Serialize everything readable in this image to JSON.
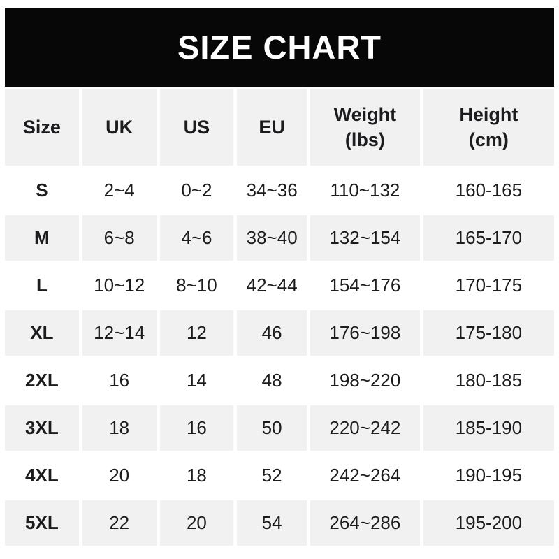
{
  "banner": {
    "title": "SIZE CHART",
    "background_color": "#070707",
    "text_color": "#ffffff"
  },
  "table_style": {
    "stripe_color": "#f1f1f2",
    "row_color": "#ffffff",
    "text_color": "#1c1c1e"
  },
  "chart_data": {
    "type": "table",
    "title": "SIZE CHART",
    "columns": [
      {
        "key": "size",
        "label": "Size"
      },
      {
        "key": "uk",
        "label": "UK"
      },
      {
        "key": "us",
        "label": "US"
      },
      {
        "key": "eu",
        "label": "EU"
      },
      {
        "key": "weight",
        "label": "Weight\n(lbs)"
      },
      {
        "key": "height",
        "label": "Height\n(cm)"
      }
    ],
    "rows": [
      [
        "S",
        "2~4",
        "0~2",
        "34~36",
        "110~132",
        "160-165"
      ],
      [
        "M",
        "6~8",
        "4~6",
        "38~40",
        "132~154",
        "165-170"
      ],
      [
        "L",
        "10~12",
        "8~10",
        "42~44",
        "154~176",
        "170-175"
      ],
      [
        "XL",
        "12~14",
        "12",
        "46",
        "176~198",
        "175-180"
      ],
      [
        "2XL",
        "16",
        "14",
        "48",
        "198~220",
        "180-185"
      ],
      [
        "3XL",
        "18",
        "16",
        "50",
        "220~242",
        "185-190"
      ],
      [
        "4XL",
        "20",
        "18",
        "52",
        "242~264",
        "190-195"
      ],
      [
        "5XL",
        "22",
        "20",
        "54",
        "264~286",
        "195-200"
      ]
    ]
  }
}
